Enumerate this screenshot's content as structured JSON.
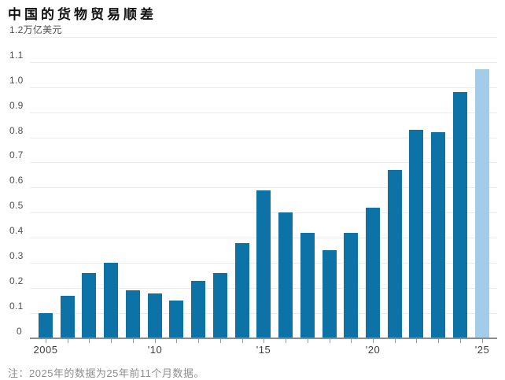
{
  "page": {
    "title": "中国的货物贸易顺差",
    "note": "注：2025年的数据为25年前11个月数据。"
  },
  "colors": {
    "bar": "#0d73a6",
    "bar_highlight": "#a3cce9",
    "gridline": "#ebebeb",
    "axis_line": "#8c8c8c",
    "tick": "#999999"
  },
  "chart_data": {
    "type": "bar",
    "title": "中国的货物贸易顺差",
    "unit_label": "万亿美元",
    "ylabel": "万亿美元",
    "categories": [
      "2005",
      "2006",
      "2007",
      "2008",
      "2009",
      "2010",
      "2011",
      "2012",
      "2013",
      "2014",
      "2015",
      "2016",
      "2017",
      "2018",
      "2019",
      "2020",
      "2021",
      "2022",
      "2023",
      "2024",
      "2025"
    ],
    "values": [
      0.1,
      0.17,
      0.26,
      0.3,
      0.19,
      0.18,
      0.15,
      0.23,
      0.26,
      0.38,
      0.59,
      0.5,
      0.42,
      0.35,
      0.42,
      0.52,
      0.67,
      0.83,
      0.82,
      0.98,
      1.07
    ],
    "highlight_category": "2025",
    "y_ticks": [
      0,
      0.1,
      0.2,
      0.3,
      0.4,
      0.5,
      0.6,
      0.7,
      0.8,
      0.9,
      1.0,
      1.1,
      1.2
    ],
    "ylim": [
      0,
      1.2
    ],
    "x_axis_labels": [
      {
        "label": "2005",
        "at": "2005"
      },
      {
        "label": "'10",
        "at": "2010"
      },
      {
        "label": "'15",
        "at": "2015"
      },
      {
        "label": "'20",
        "at": "2020"
      },
      {
        "label": "'25",
        "at": "2025"
      }
    ],
    "grid": "horizontal",
    "legend": "none",
    "note": "注：2025年的数据为25年前11个月数据。"
  }
}
